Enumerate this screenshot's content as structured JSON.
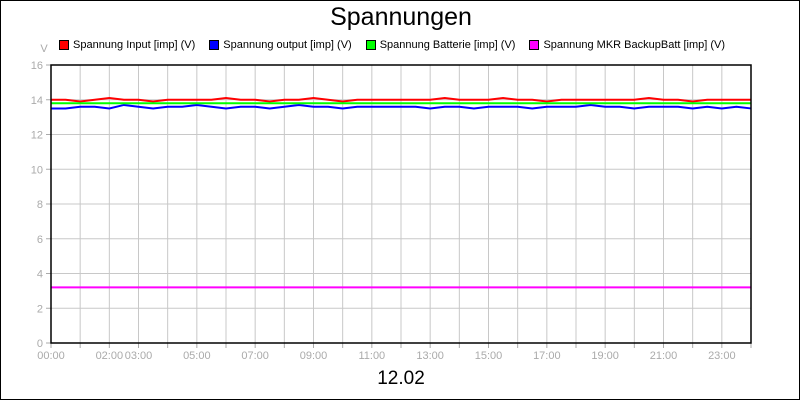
{
  "chart_data": {
    "type": "line",
    "title": "Spannungen",
    "xlabel": "12.02",
    "ylabel": "V",
    "ylim": [
      0,
      16
    ],
    "xlim": [
      0,
      24
    ],
    "yticks": [
      "0",
      "2",
      "4",
      "6",
      "8",
      "10",
      "12",
      "14",
      "16"
    ],
    "xtick_labels": [
      {
        "h": 0,
        "label": "00:00"
      },
      {
        "h": 2,
        "label": "02:00"
      },
      {
        "h": 3,
        "label": "03:00"
      },
      {
        "h": 5,
        "label": "05:00"
      },
      {
        "h": 7,
        "label": "07:00"
      },
      {
        "h": 9,
        "label": "09:00"
      },
      {
        "h": 11,
        "label": "11:00"
      },
      {
        "h": 13,
        "label": "13:00"
      },
      {
        "h": 15,
        "label": "15:00"
      },
      {
        "h": 17,
        "label": "17:00"
      },
      {
        "h": 19,
        "label": "19:00"
      },
      {
        "h": 21,
        "label": "21:00"
      },
      {
        "h": 23,
        "label": "23:00"
      }
    ],
    "grid": true,
    "legend_position": "top",
    "x_step_hours": 0.5,
    "series": [
      {
        "name": "Spannung Input [imp] (V)",
        "color": "#ff0000",
        "values": [
          14.0,
          14.0,
          13.9,
          14.0,
          14.1,
          14.0,
          14.0,
          13.9,
          14.0,
          14.0,
          14.0,
          14.0,
          14.1,
          14.0,
          14.0,
          13.9,
          14.0,
          14.0,
          14.1,
          14.0,
          13.9,
          14.0,
          14.0,
          14.0,
          14.0,
          14.0,
          14.0,
          14.1,
          14.0,
          14.0,
          14.0,
          14.1,
          14.0,
          14.0,
          13.9,
          14.0,
          14.0,
          14.0,
          14.0,
          14.0,
          14.0,
          14.1,
          14.0,
          14.0,
          13.9,
          14.0,
          14.0,
          14.0,
          14.0
        ]
      },
      {
        "name": "Spannung output [imp] (V)",
        "color": "#0000ff",
        "values": [
          13.5,
          13.5,
          13.6,
          13.6,
          13.5,
          13.7,
          13.6,
          13.5,
          13.6,
          13.6,
          13.7,
          13.6,
          13.5,
          13.6,
          13.6,
          13.5,
          13.6,
          13.7,
          13.6,
          13.6,
          13.5,
          13.6,
          13.6,
          13.6,
          13.6,
          13.6,
          13.5,
          13.6,
          13.6,
          13.5,
          13.6,
          13.6,
          13.6,
          13.5,
          13.6,
          13.6,
          13.6,
          13.7,
          13.6,
          13.6,
          13.5,
          13.6,
          13.6,
          13.6,
          13.5,
          13.6,
          13.5,
          13.6,
          13.5
        ]
      },
      {
        "name": "Spannung Batterie [imp] (V)",
        "color": "#00ff00",
        "values": [
          13.8,
          13.8,
          13.8,
          13.8,
          13.8,
          13.8,
          13.8,
          13.8,
          13.8,
          13.8,
          13.8,
          13.8,
          13.8,
          13.8,
          13.8,
          13.8,
          13.8,
          13.8,
          13.8,
          13.8,
          13.8,
          13.8,
          13.8,
          13.8,
          13.8,
          13.8,
          13.8,
          13.8,
          13.8,
          13.8,
          13.8,
          13.8,
          13.8,
          13.8,
          13.8,
          13.8,
          13.8,
          13.8,
          13.8,
          13.8,
          13.8,
          13.8,
          13.8,
          13.8,
          13.8,
          13.8,
          13.8,
          13.8,
          13.8
        ]
      },
      {
        "name": "Spannung MKR BackupBatt [imp] (V)",
        "color": "#ff00ff",
        "values": [
          3.2,
          3.2,
          3.2,
          3.2,
          3.2,
          3.2,
          3.2,
          3.2,
          3.2,
          3.2,
          3.2,
          3.2,
          3.2,
          3.2,
          3.2,
          3.2,
          3.2,
          3.2,
          3.2,
          3.2,
          3.2,
          3.2,
          3.2,
          3.2,
          3.2,
          3.2,
          3.2,
          3.2,
          3.2,
          3.2,
          3.2,
          3.2,
          3.2,
          3.2,
          3.2,
          3.2,
          3.2,
          3.2,
          3.2,
          3.2,
          3.2,
          3.2,
          3.2,
          3.2,
          3.2,
          3.2,
          3.2,
          3.2,
          3.2
        ]
      }
    ]
  }
}
